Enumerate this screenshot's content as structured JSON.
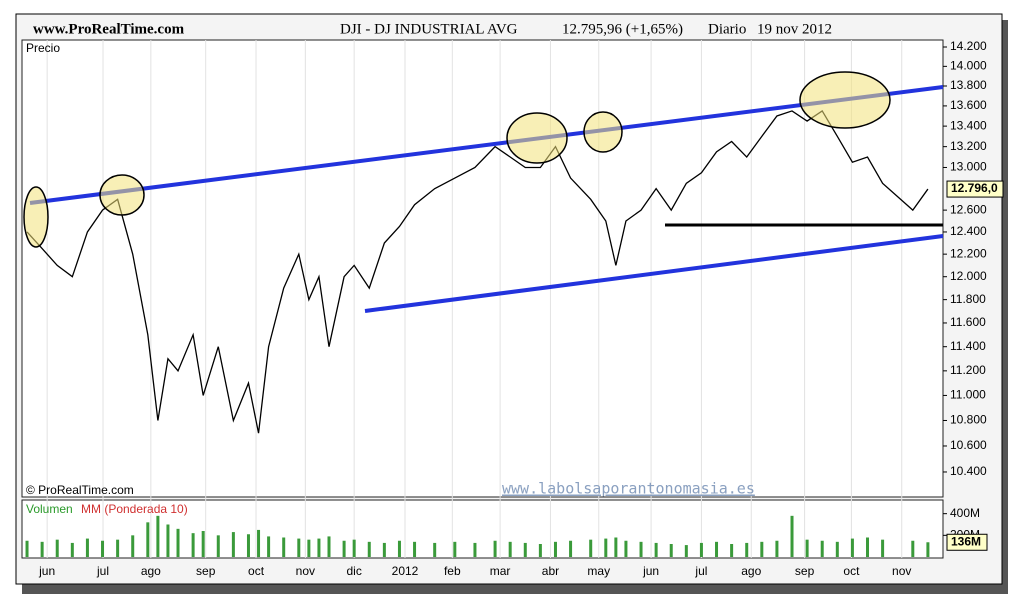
{
  "header": {
    "site": "www.ProRealTime.com",
    "instrument": "DJI - DJ INDUSTRIAL AVG",
    "quote": "12.795,96 (+1,65%)",
    "period": "Diario",
    "date": "19 nov 2012"
  },
  "footer": {
    "copyright": "© ProRealTime.com",
    "watermark": "www.labolsaporantonomasia.es"
  },
  "chart_data": [
    {
      "type": "line",
      "title": "Precio",
      "log_scale": true,
      "grid": true,
      "color": "#000000",
      "x": [
        0.1,
        0.4,
        0.7,
        1.0,
        1.3,
        1.6,
        1.9,
        2.2,
        2.5,
        2.7,
        2.9,
        3.1,
        3.4,
        3.6,
        3.9,
        4.2,
        4.5,
        4.7,
        4.9,
        5.2,
        5.5,
        5.7,
        5.9,
        6.1,
        6.4,
        6.6,
        6.9,
        7.2,
        7.5,
        7.8,
        8.2,
        8.6,
        9.0,
        9.4,
        9.7,
        10.0,
        10.3,
        10.6,
        10.9,
        11.3,
        11.6,
        11.8,
        12.0,
        12.3,
        12.6,
        12.9,
        13.2,
        13.5,
        13.8,
        14.1,
        14.4,
        14.7,
        15.0,
        15.3,
        15.6,
        15.9,
        16.2,
        16.5,
        16.8,
        17.1,
        17.7,
        18.0
      ],
      "series": [
        {
          "name": "DJI",
          "color": "#000000",
          "values": [
            12400,
            12250,
            12100,
            12000,
            12400,
            12600,
            12700,
            12200,
            11500,
            10800,
            11300,
            11200,
            11500,
            11000,
            11400,
            10800,
            11100,
            10700,
            11400,
            11900,
            12200,
            11800,
            12000,
            11400,
            12000,
            12100,
            11900,
            12300,
            12450,
            12650,
            12800,
            12900,
            13000,
            13200,
            13100,
            13000,
            13000,
            13200,
            12900,
            12700,
            12500,
            12100,
            12500,
            12600,
            12800,
            12600,
            12850,
            12950,
            13150,
            13250,
            13100,
            13300,
            13500,
            13550,
            13450,
            13550,
            13300,
            13050,
            13100,
            12850,
            12600,
            12796
          ]
        }
      ],
      "xlim": [
        0,
        18.3
      ],
      "xticks": [
        {
          "value": 0.5,
          "label": "jun"
        },
        {
          "value": 1.61,
          "label": "jul"
        },
        {
          "value": 2.56,
          "label": "ago"
        },
        {
          "value": 3.65,
          "label": "sep"
        },
        {
          "value": 4.65,
          "label": "oct"
        },
        {
          "value": 5.63,
          "label": "nov"
        },
        {
          "value": 6.6,
          "label": "dic"
        },
        {
          "value": 7.61,
          "label": "2012"
        },
        {
          "value": 8.55,
          "label": "feb"
        },
        {
          "value": 9.5,
          "label": "mar"
        },
        {
          "value": 10.5,
          "label": "abr"
        },
        {
          "value": 11.46,
          "label": "may"
        },
        {
          "value": 12.5,
          "label": "jun"
        },
        {
          "value": 13.5,
          "label": "jul"
        },
        {
          "value": 14.49,
          "label": "ago"
        },
        {
          "value": 15.55,
          "label": "sep"
        },
        {
          "value": 16.48,
          "label": "oct"
        },
        {
          "value": 17.48,
          "label": "nov"
        }
      ],
      "ylim": [
        10211,
        14273
      ],
      "yticks": [
        {
          "value": 10400,
          "label": "10.400"
        },
        {
          "value": 10600,
          "label": "10.600"
        },
        {
          "value": 10800,
          "label": "10.800"
        },
        {
          "value": 11000,
          "label": "11.000"
        },
        {
          "value": 11200,
          "label": "11.200"
        },
        {
          "value": 11400,
          "label": "11.400"
        },
        {
          "value": 11600,
          "label": "11.600"
        },
        {
          "value": 11800,
          "label": "11.800"
        },
        {
          "value": 12000,
          "label": "12.000"
        },
        {
          "value": 12200,
          "label": "12.200"
        },
        {
          "value": 12400,
          "label": "12.400"
        },
        {
          "value": 12600,
          "label": "12.600"
        },
        {
          "value": 13000,
          "label": "13.000"
        },
        {
          "value": 13200,
          "label": "13.200"
        },
        {
          "value": 13400,
          "label": "13.400"
        },
        {
          "value": 13600,
          "label": "13.600"
        },
        {
          "value": 13800,
          "label": "13.800"
        },
        {
          "value": 14000,
          "label": "14.000"
        },
        {
          "value": 14200,
          "label": "14.200"
        }
      ],
      "last": {
        "value": 12796,
        "label": "12.796,0"
      }
    },
    {
      "type": "bar",
      "title": "Volumen",
      "subtitle": "MM (Ponderada 10)",
      "color": "#3a9a3a",
      "x": [
        0.1,
        0.4,
        0.7,
        1.0,
        1.3,
        1.6,
        1.9,
        2.2,
        2.5,
        2.7,
        2.9,
        3.1,
        3.4,
        3.6,
        3.9,
        4.2,
        4.5,
        4.7,
        4.9,
        5.2,
        5.5,
        5.7,
        5.9,
        6.1,
        6.4,
        6.6,
        6.9,
        7.2,
        7.5,
        7.8,
        8.2,
        8.6,
        9.0,
        9.4,
        9.7,
        10.0,
        10.3,
        10.6,
        10.9,
        11.3,
        11.6,
        11.8,
        12.0,
        12.3,
        12.6,
        12.9,
        13.2,
        13.5,
        13.8,
        14.1,
        14.4,
        14.7,
        15.0,
        15.3,
        15.6,
        15.9,
        16.2,
        16.5,
        16.8,
        17.1,
        17.7,
        18.0
      ],
      "values": [
        150,
        140,
        160,
        130,
        170,
        150,
        160,
        200,
        320,
        380,
        300,
        260,
        220,
        240,
        200,
        230,
        210,
        250,
        190,
        180,
        170,
        160,
        170,
        190,
        150,
        160,
        140,
        130,
        150,
        140,
        130,
        140,
        130,
        150,
        140,
        130,
        120,
        140,
        150,
        160,
        170,
        180,
        150,
        140,
        130,
        120,
        110,
        130,
        140,
        120,
        130,
        140,
        150,
        380,
        160,
        150,
        140,
        170,
        180,
        160,
        150,
        136
      ],
      "xlim": [
        0,
        18.3
      ],
      "ylim": [
        0,
        480
      ],
      "yticks": [
        {
          "value": 200,
          "label": "200M"
        },
        {
          "value": 400,
          "label": "400M"
        }
      ],
      "last": {
        "value": 136,
        "label": "136M"
      }
    }
  ]
}
